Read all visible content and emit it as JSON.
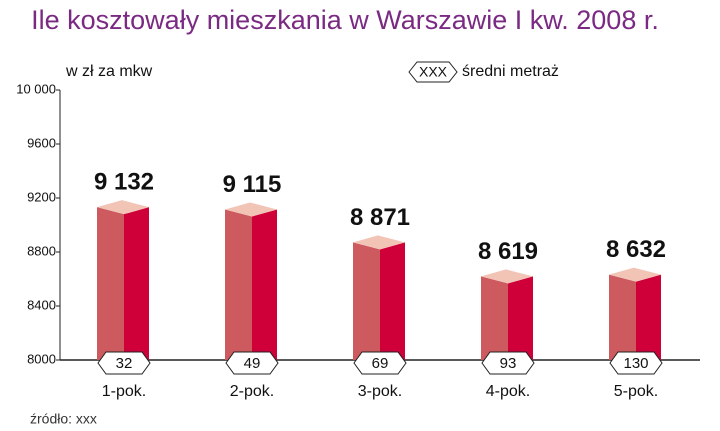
{
  "chart_data": {
    "type": "bar",
    "title": "Ile kosztowały mieszkania w Warszawie I kw. 2008 r.",
    "y_label": "w zł za mkw",
    "categories": [
      "1-pok.",
      "2-pok.",
      "3-pok.",
      "4-pok.",
      "5-pok."
    ],
    "values": [
      9132,
      9115,
      8871,
      8619,
      8632
    ],
    "value_labels": [
      "9 132",
      "9 115",
      "8 871",
      "8 619",
      "8 632"
    ],
    "colors": {
      "front": "#cc5a5f",
      "side": "#cf0039",
      "top": "#f2c4b6"
    },
    "average_area": {
      "name": "średni metraż",
      "symbol": "XXX",
      "values": [
        32,
        49,
        69,
        93,
        130
      ]
    },
    "ylim": [
      8000,
      10000
    ],
    "yticks": [
      8000,
      8400,
      8800,
      9200,
      9600,
      {
        "value": 10000,
        "label": "10 000"
      }
    ],
    "source": "źródło: xxx"
  }
}
